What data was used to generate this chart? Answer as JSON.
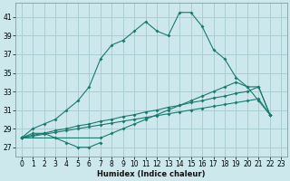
{
  "xlabel": "Humidex (Indice chaleur)",
  "bg_color": "#cce8ec",
  "grid_color": "#aacdd4",
  "line_color": "#1a7a6e",
  "xlim": [
    -0.5,
    23.5
  ],
  "ylim": [
    26.0,
    42.5
  ],
  "yticks": [
    27,
    29,
    31,
    33,
    35,
    37,
    39,
    41
  ],
  "xticks": [
    0,
    1,
    2,
    3,
    4,
    5,
    6,
    7,
    8,
    9,
    10,
    11,
    12,
    13,
    14,
    15,
    16,
    17,
    18,
    19,
    20,
    21,
    22,
    23
  ],
  "series": [
    {
      "x": [
        0,
        1,
        2,
        3,
        4,
        5,
        6,
        7,
        8,
        9,
        10,
        11,
        12,
        13,
        14,
        15,
        16,
        17,
        18,
        19,
        20,
        21,
        22
      ],
      "y": [
        28.0,
        29.0,
        29.5,
        30.0,
        31.0,
        32.0,
        33.5,
        36.5,
        38.0,
        38.5,
        39.5,
        40.5,
        39.5,
        39.0,
        41.5,
        41.5,
        40.0,
        37.5,
        36.5,
        34.5,
        33.5,
        32.0,
        30.5
      ]
    },
    {
      "x": [
        0,
        1,
        2,
        3,
        4,
        5,
        6,
        7
      ],
      "y": [
        28.0,
        28.5,
        28.5,
        28.0,
        27.5,
        27.0,
        27.0,
        27.5
      ]
    },
    {
      "x": [
        0,
        1,
        2,
        3,
        4,
        5,
        6,
        7,
        8,
        9,
        10,
        11,
        12,
        13,
        14,
        15,
        16,
        17,
        18,
        19,
        20,
        21,
        22
      ],
      "y": [
        28.0,
        28.2,
        28.4,
        28.6,
        28.8,
        29.0,
        29.2,
        29.4,
        29.6,
        29.8,
        30.0,
        30.2,
        30.4,
        30.6,
        30.8,
        31.0,
        31.2,
        31.4,
        31.6,
        31.8,
        32.0,
        32.2,
        30.5
      ]
    },
    {
      "x": [
        0,
        1,
        2,
        3,
        4,
        5,
        6,
        7,
        8,
        9,
        10,
        11,
        12,
        13,
        14,
        15,
        16,
        17,
        18,
        19,
        20,
        21,
        22
      ],
      "y": [
        28.0,
        28.3,
        28.5,
        28.8,
        29.0,
        29.3,
        29.5,
        29.8,
        30.0,
        30.3,
        30.5,
        30.8,
        31.0,
        31.3,
        31.5,
        31.8,
        32.0,
        32.3,
        32.5,
        32.8,
        33.0,
        33.5,
        30.5
      ]
    },
    {
      "x": [
        0,
        7,
        8,
        9,
        10,
        11,
        12,
        13,
        14,
        15,
        16,
        17,
        18,
        19,
        20,
        21,
        22
      ],
      "y": [
        28.0,
        28.0,
        28.5,
        29.0,
        29.5,
        30.0,
        30.5,
        31.0,
        31.5,
        32.0,
        32.5,
        33.0,
        33.5,
        34.0,
        33.5,
        33.5,
        30.5
      ]
    }
  ]
}
